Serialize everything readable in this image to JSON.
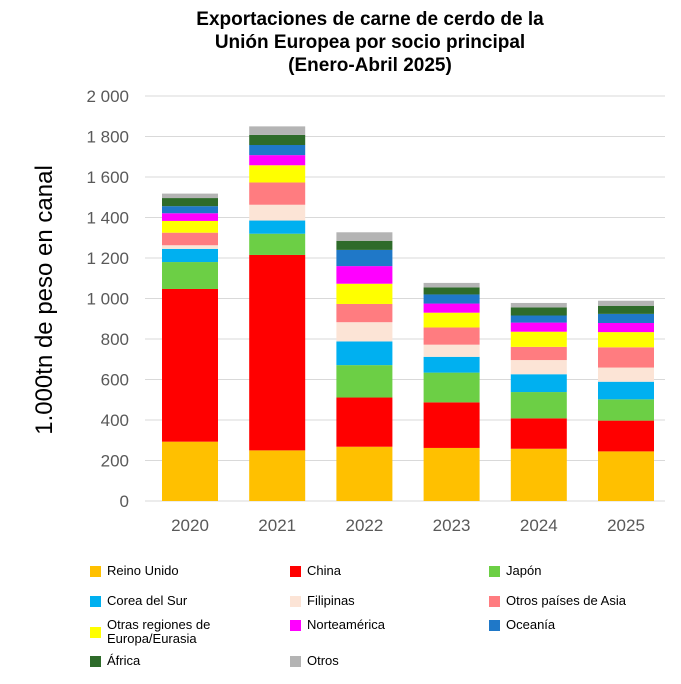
{
  "title": {
    "line1": "Exportaciones de carne de cerdo de la",
    "line2": "Unión Europea por socio principal",
    "line3": "(Enero-Abril 2025)"
  },
  "chart_data": {
    "type": "bar",
    "stacked": true,
    "title": "Exportaciones de carne de cerdo de la Unión Europea por socio principal (Enero-Abril 2025)",
    "xlabel": "",
    "ylabel": "1.000tn de peso en canal",
    "ylim": [
      0,
      2000
    ],
    "yticks": [
      "0",
      "200",
      "400",
      "600",
      "800",
      "1 000",
      "1 200",
      "1 400",
      "1 600",
      "1 800",
      "2 000"
    ],
    "ytick_values": [
      0,
      200,
      400,
      600,
      800,
      1000,
      1200,
      1400,
      1600,
      1800,
      2000
    ],
    "grid": true,
    "legend_position": "bottom",
    "categories": [
      "2020",
      "2021",
      "2022",
      "2023",
      "2024",
      "2025"
    ],
    "series": [
      {
        "name": "Reino Unido",
        "color": "#FFC000",
        "values": [
          293,
          250,
          268,
          262,
          258,
          245
        ]
      },
      {
        "name": "China",
        "color": "#FF0000",
        "values": [
          754,
          965,
          243,
          225,
          150,
          152
        ]
      },
      {
        "name": "Japón",
        "color": "#6CCF45",
        "values": [
          133,
          105,
          160,
          147,
          130,
          105
        ]
      },
      {
        "name": "Corea del Sur",
        "color": "#00B0F0",
        "values": [
          65,
          65,
          117,
          78,
          88,
          87
        ]
      },
      {
        "name": "Filipinas",
        "color": "#FCE4D6",
        "values": [
          18,
          78,
          95,
          60,
          70,
          70
        ]
      },
      {
        "name": "Otros países de Asia",
        "color": "#FF7C80",
        "values": [
          62,
          110,
          90,
          85,
          65,
          100
        ]
      },
      {
        "name": "Otras regiones de Europa/Eurasia",
        "color": "#FFFF00",
        "values": [
          58,
          85,
          100,
          73,
          75,
          75
        ]
      },
      {
        "name": "Norteamérica",
        "color": "#FF00FF",
        "values": [
          38,
          50,
          87,
          45,
          45,
          45
        ]
      },
      {
        "name": "Oceanía",
        "color": "#1F78C8",
        "values": [
          35,
          50,
          80,
          45,
          35,
          45
        ]
      },
      {
        "name": "África",
        "color": "#2E6B2A",
        "values": [
          40,
          50,
          45,
          35,
          40,
          40
        ]
      },
      {
        "name": "Otros",
        "color": "#B4B4B4",
        "values": [
          22,
          42,
          42,
          22,
          22,
          25
        ]
      }
    ]
  }
}
